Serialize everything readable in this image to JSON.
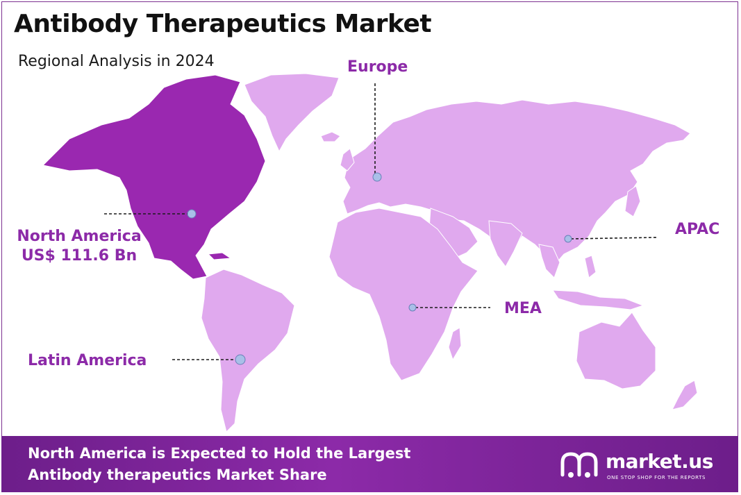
{
  "title": "Antibody Therapeutics Market",
  "subtitle": "Regional Analysis in 2024",
  "colors": {
    "highlight_region": "#9a28b0",
    "other_regions": "#e0a9ee",
    "label_text": "#8c2aa8",
    "marker_fill": "#a9bfe8",
    "footer_bg": "#7b2395"
  },
  "regions": [
    {
      "id": "north-america",
      "name": "North America",
      "value": "US$ 111.6 Bn",
      "highlighted": true
    },
    {
      "id": "europe",
      "name": "Europe",
      "highlighted": false
    },
    {
      "id": "apac",
      "name": "APAC",
      "highlighted": false
    },
    {
      "id": "mea",
      "name": "MEA",
      "highlighted": false
    },
    {
      "id": "latin-america",
      "name": "Latin America",
      "highlighted": false
    }
  ],
  "footer": {
    "line1": "North America is Expected to Hold the Largest",
    "line2": "Antibody therapeutics Market Share"
  },
  "logo": {
    "brand": "market.us",
    "tagline": "ONE STOP SHOP FOR THE REPORTS",
    "icon": "market-us-logo-icon"
  }
}
